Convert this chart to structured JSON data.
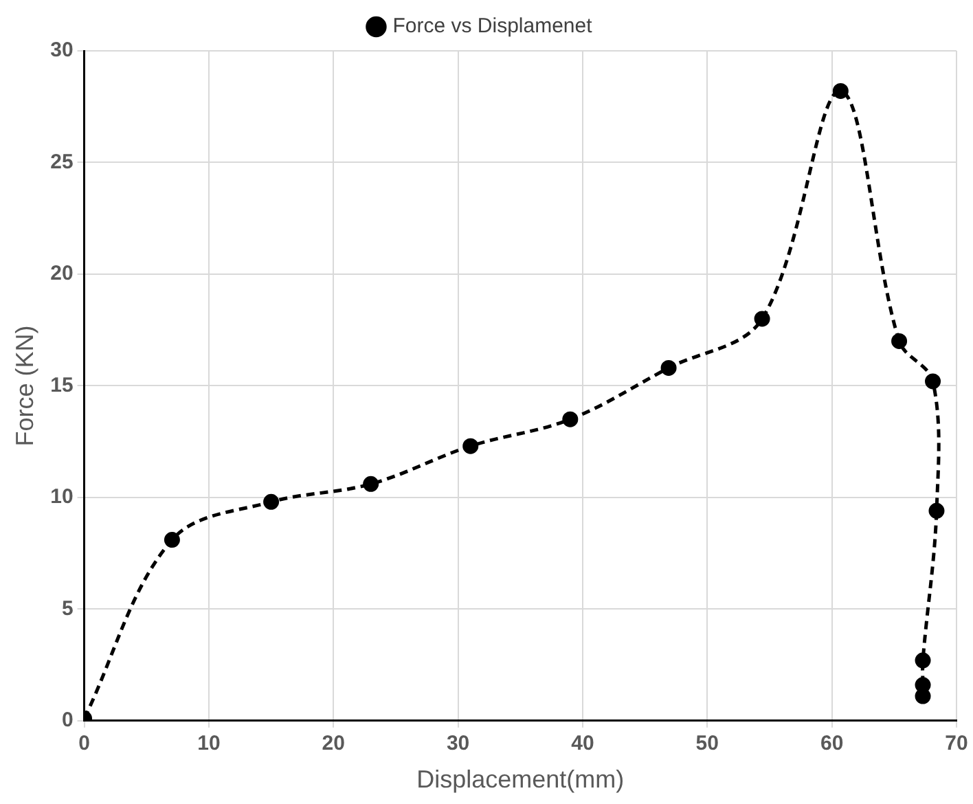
{
  "chart_data": {
    "type": "line",
    "xlabel": "Displacement(mm)",
    "ylabel": "Force (KN)",
    "series": [
      {
        "name": "Force vs Displamenet",
        "color": "#000000",
        "x": [
          0,
          7.05,
          15,
          23,
          31,
          39,
          46.9,
          54.4,
          60.7,
          65.4,
          68.1,
          68.4,
          67.3,
          67.3,
          67.3
        ],
        "values": [
          0.1,
          8.1,
          9.8,
          10.6,
          12.3,
          13.5,
          15.8,
          18,
          28.2,
          17,
          15.2,
          9.4,
          2.7,
          1.6,
          1.1
        ]
      }
    ],
    "xlim": [
      0,
      70
    ],
    "xticks": [
      0,
      10,
      20,
      30,
      40,
      50,
      60,
      70
    ],
    "ylim": [
      0,
      30
    ],
    "yticks": [
      0,
      5,
      10,
      15,
      20,
      25,
      30
    ],
    "grid": true,
    "legend": "top",
    "marker": "circle",
    "line_style": "dashed"
  }
}
